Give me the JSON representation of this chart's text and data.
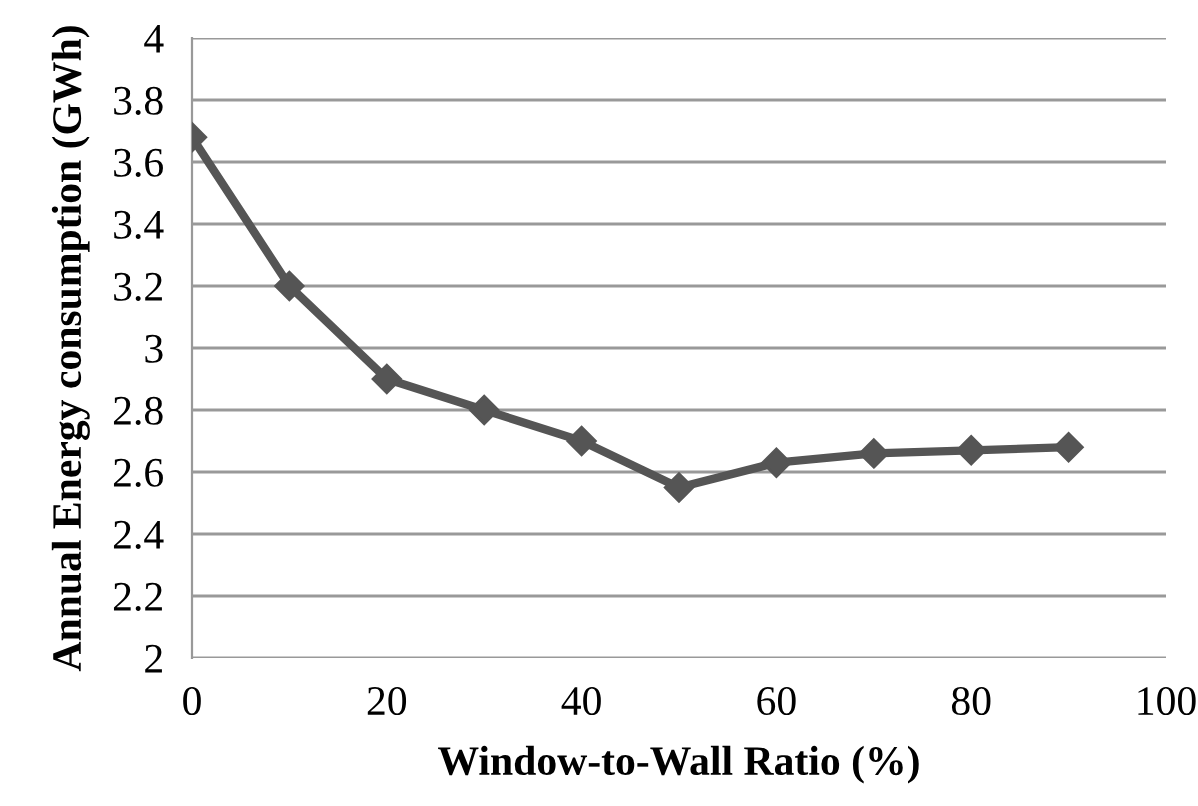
{
  "chart_data": {
    "type": "line",
    "xlabel": "Window-to-Wall Ratio (%)",
    "ylabel": "Annual Energy consumption (GWh)",
    "x": [
      0,
      10,
      20,
      30,
      40,
      50,
      60,
      70,
      80,
      90
    ],
    "series": [
      {
        "color": "#555555",
        "values": [
          3.68,
          3.2,
          2.9,
          2.8,
          2.7,
          2.55,
          2.63,
          2.66,
          2.67,
          2.68
        ]
      }
    ],
    "xlim": [
      0,
      100
    ],
    "xticks": [
      0,
      20,
      40,
      60,
      80,
      100
    ],
    "ylim": [
      2,
      4
    ],
    "yticks": [
      2,
      {
        "value": 2.2,
        "label": "2.2"
      },
      {
        "value": 2.4,
        "label": "2.4"
      },
      {
        "value": 2.6,
        "label": "2.6"
      },
      {
        "value": 2.8,
        "label": "2.8"
      },
      3,
      {
        "value": 3.2,
        "label": "3.2"
      },
      {
        "value": 3.4,
        "label": "3.4"
      },
      {
        "value": 3.6,
        "label": "3.6"
      },
      {
        "value": 3.8,
        "label": "3.8"
      },
      4
    ],
    "grid": "y",
    "marker": "diamond",
    "line_style": "solid"
  }
}
